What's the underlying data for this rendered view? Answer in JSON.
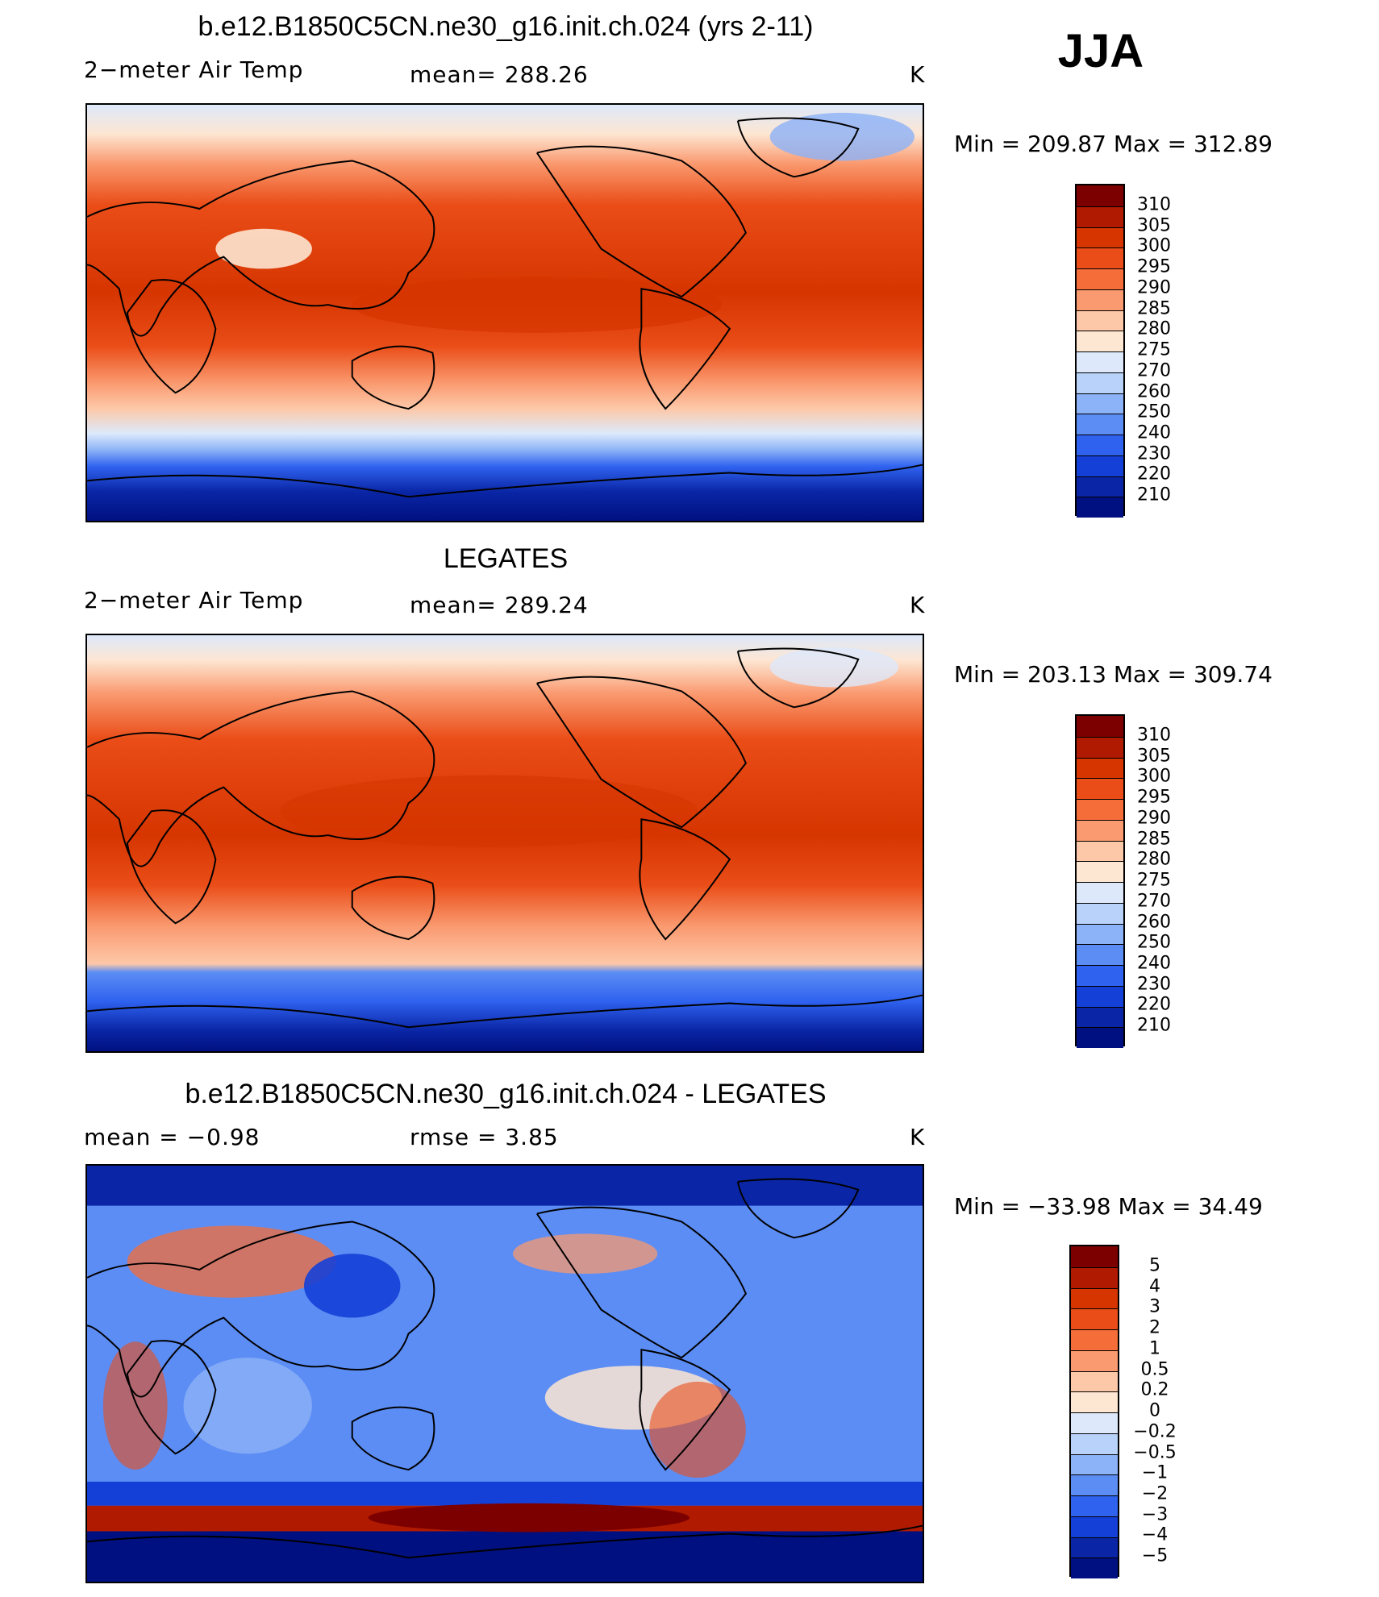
{
  "season": "JJA",
  "panels": [
    {
      "title": "b.e12.B1850C5CN.ne30_g16.init.ch.024 (yrs 2-11)",
      "left_label": "2−meter Air Temp",
      "center_label": "mean=  288.26",
      "units": "K",
      "minmax": "Min  =  209.87  Max  =  312.89",
      "colorbar_labels": [
        "310",
        "305",
        "300",
        "295",
        "290",
        "285",
        "280",
        "275",
        "270",
        "260",
        "250",
        "240",
        "230",
        "220",
        "210"
      ]
    },
    {
      "title": "LEGATES",
      "left_label": "2−meter Air Temp",
      "center_label": "mean=  289.24",
      "units": "K",
      "minmax": "Min  =  203.13  Max  =  309.74",
      "colorbar_labels": [
        "310",
        "305",
        "300",
        "295",
        "290",
        "285",
        "280",
        "275",
        "270",
        "260",
        "250",
        "240",
        "230",
        "220",
        "210"
      ]
    },
    {
      "title": "b.e12.B1850C5CN.ne30_g16.init.ch.024 - LEGATES",
      "left_label": "mean  =    −0.98",
      "center_label": "rmse  =     3.85",
      "units": "K",
      "minmax": "Min  =  −33.98  Max  =    34.49",
      "colorbar_labels": [
        "5",
        "4",
        "3",
        "2",
        "1",
        "0.5",
        "0.2",
        "0",
        "−0.2",
        "−0.5",
        "−1",
        "−2",
        "−3",
        "−4",
        "−5"
      ]
    }
  ],
  "colors": {
    "temp_scale": [
      "#7d0000",
      "#b01a00",
      "#d63500",
      "#ea4d18",
      "#f56d38",
      "#fa9a70",
      "#fdc8a8",
      "#fde6d2",
      "#dde9fb",
      "#b8d2fa",
      "#8cb2f7",
      "#5c8df4",
      "#2f62ef",
      "#1440d8",
      "#0a26a6",
      "#001080"
    ],
    "diff_scale": [
      "#7d0000",
      "#b01a00",
      "#d63500",
      "#ea4d18",
      "#f56d38",
      "#fa9a70",
      "#fdc8a8",
      "#fde6d2",
      "#dde9fb",
      "#b8d2fa",
      "#8cb2f7",
      "#5c8df4",
      "#2f62ef",
      "#1440d8",
      "#0a26a6",
      "#001080"
    ]
  }
}
